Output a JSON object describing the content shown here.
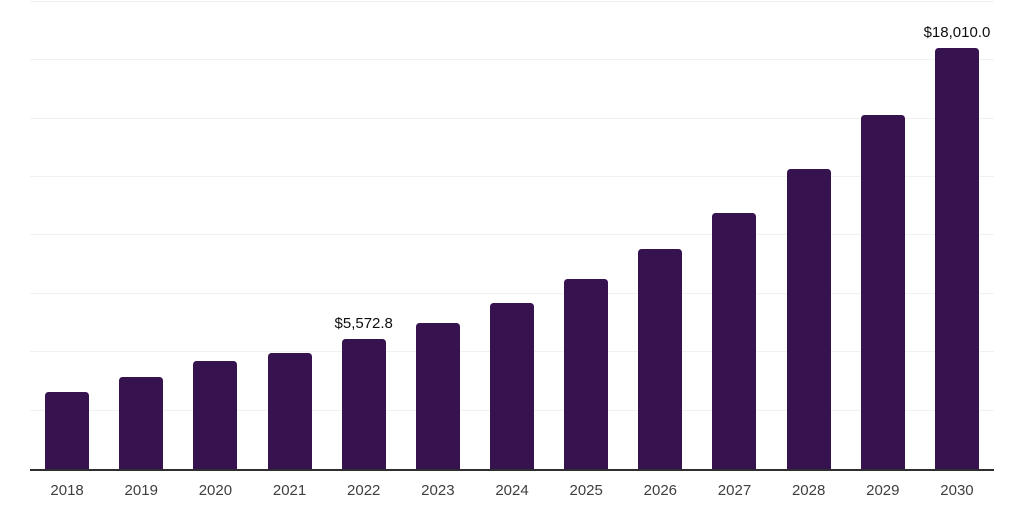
{
  "chart_data": {
    "type": "bar",
    "title": "",
    "xlabel": "",
    "ylabel": "",
    "categories": [
      "2018",
      "2019",
      "2020",
      "2021",
      "2022",
      "2023",
      "2024",
      "2025",
      "2026",
      "2027",
      "2028",
      "2029",
      "2030"
    ],
    "values": [
      3310,
      3930,
      4640,
      4950,
      5572.8,
      6240,
      7120,
      8130,
      9420,
      10950,
      12840,
      15150,
      18010
    ],
    "ylim": [
      0,
      20000
    ],
    "gridline_interval": 2500,
    "grid": true,
    "legend_position": "none",
    "y_tick_labels_visible": false,
    "data_labels": {
      "4": "$5,572.8",
      "12": "$18,010.0"
    },
    "colors": {
      "bar": "#36124e",
      "axis_line": "#2e2e2e",
      "gridline": "#f1f1f1",
      "tick_label": "#3f3f3f",
      "data_label": "#0f0f0f",
      "background": "#ffffff"
    }
  }
}
